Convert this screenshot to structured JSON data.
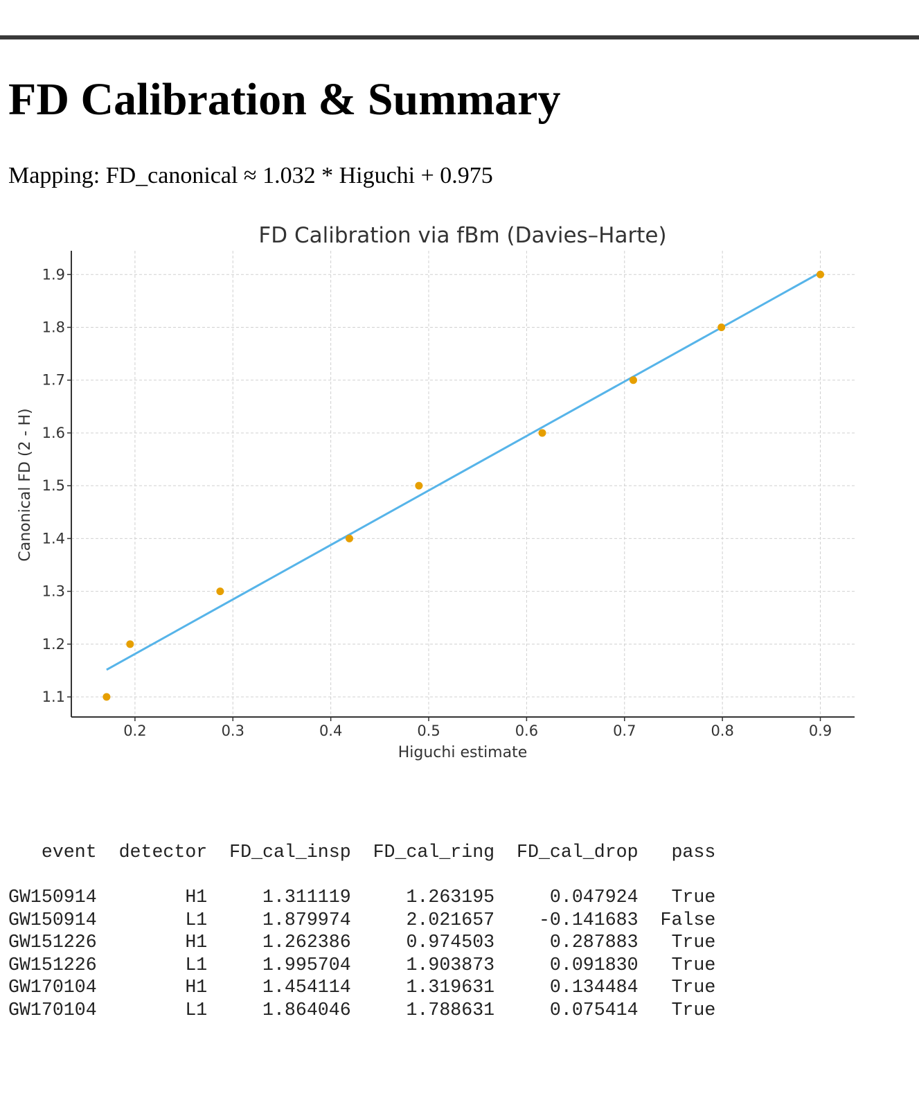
{
  "page": {
    "title": "FD Calibration & Summary",
    "mapping_text": "Mapping: FD_canonical ≈ 1.032 * Higuchi + 0.975"
  },
  "chart_data": {
    "type": "scatter",
    "title": "FD Calibration via fBm (Davies–Harte)",
    "xlabel": "Higuchi estimate",
    "ylabel": "Canonical FD (2 - H)",
    "xlim": [
      0.135,
      0.935
    ],
    "ylim": [
      1.062,
      1.945
    ],
    "xticks": [
      0.2,
      0.3,
      0.4,
      0.5,
      0.6,
      0.7,
      0.8,
      0.9
    ],
    "xtick_labels": [
      "0.2",
      "0.3",
      "0.4",
      "0.5",
      "0.6",
      "0.7",
      "0.8",
      "0.9"
    ],
    "yticks": [
      1.1,
      1.2,
      1.3,
      1.4,
      1.5,
      1.6,
      1.7,
      1.8,
      1.9
    ],
    "ytick_labels": [
      "1.1",
      "1.2",
      "1.3",
      "1.4",
      "1.5",
      "1.6",
      "1.7",
      "1.8",
      "1.9"
    ],
    "grid": true,
    "series": [
      {
        "kind": "points",
        "color": "#E69F00",
        "points": [
          {
            "x": 0.171,
            "y": 1.1
          },
          {
            "x": 0.195,
            "y": 1.2
          },
          {
            "x": 0.287,
            "y": 1.3
          },
          {
            "x": 0.419,
            "y": 1.4
          },
          {
            "x": 0.49,
            "y": 1.5
          },
          {
            "x": 0.616,
            "y": 1.6
          },
          {
            "x": 0.709,
            "y": 1.7
          },
          {
            "x": 0.799,
            "y": 1.8
          },
          {
            "x": 0.9,
            "y": 1.9
          }
        ]
      },
      {
        "kind": "fit-line",
        "color": "#56B4E9",
        "points": [
          {
            "x": 0.171,
            "y": 1.1515
          },
          {
            "x": 0.9,
            "y": 1.9038
          }
        ]
      }
    ]
  },
  "table": {
    "columns": [
      "event",
      "detector",
      "FD_cal_insp",
      "FD_cal_ring",
      "FD_cal_drop",
      "pass"
    ],
    "rows": [
      [
        "GW150914",
        "H1",
        "1.311119",
        "1.263195",
        "0.047924",
        "True"
      ],
      [
        "GW150914",
        "L1",
        "1.879974",
        "2.021657",
        "-0.141683",
        "False"
      ],
      [
        "GW151226",
        "H1",
        "1.262386",
        "0.974503",
        "0.287883",
        "True"
      ],
      [
        "GW151226",
        "L1",
        "1.995704",
        "1.903873",
        "0.091830",
        "True"
      ],
      [
        "GW170104",
        "H1",
        "1.454114",
        "1.319631",
        "0.134484",
        "True"
      ],
      [
        "GW170104",
        "L1",
        "1.864046",
        "1.788631",
        "0.075414",
        "True"
      ]
    ]
  }
}
